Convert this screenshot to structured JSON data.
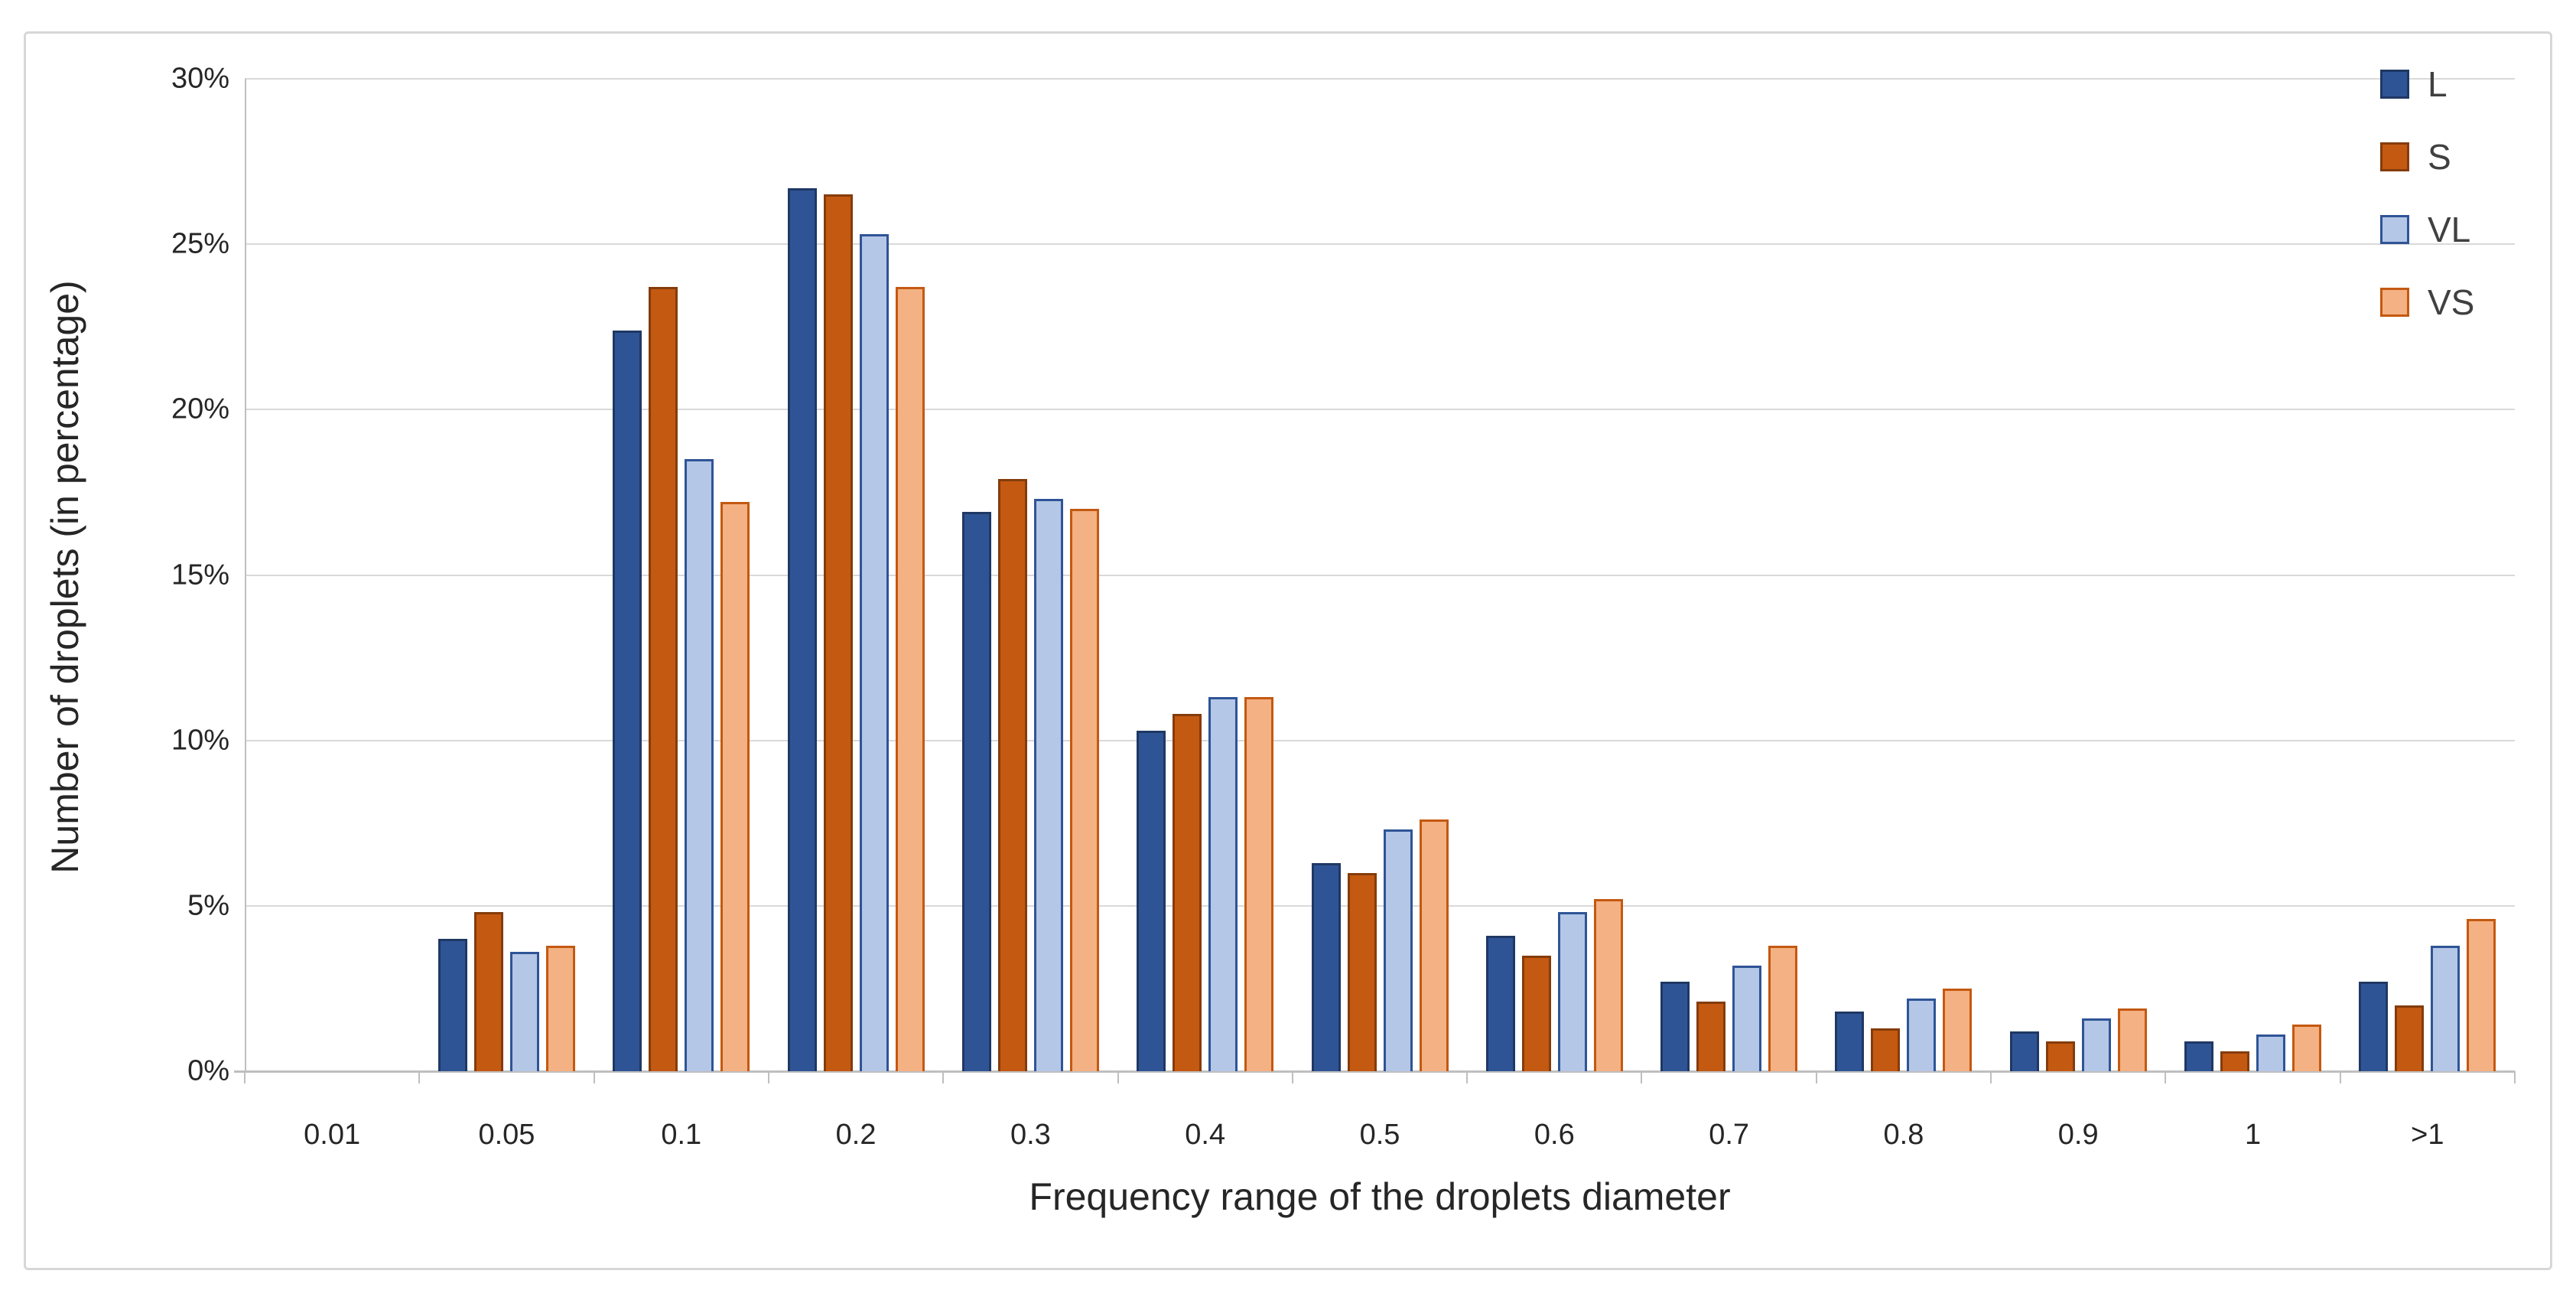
{
  "chart_data": {
    "type": "bar",
    "title": "",
    "xlabel": "Frequency range of the droplets diameter",
    "ylabel": "Number of droplets (in percentage)",
    "categories": [
      "0.01",
      "0.05",
      "0.1",
      "0.2",
      "0.3",
      "0.4",
      "0.5",
      "0.6",
      "0.7",
      "0.8",
      "0.9",
      "1",
      ">1"
    ],
    "series": [
      {
        "name": "L",
        "fill": "#2F5496",
        "stroke": "#1F3864",
        "values": [
          0,
          4.0,
          22.4,
          26.7,
          16.9,
          10.3,
          6.3,
          4.1,
          2.7,
          1.8,
          1.2,
          0.9,
          2.7
        ]
      },
      {
        "name": "S",
        "fill": "#C45911",
        "stroke": "#843C0C",
        "values": [
          0,
          4.8,
          23.7,
          26.5,
          17.9,
          10.8,
          6.0,
          3.5,
          2.1,
          1.3,
          0.9,
          0.6,
          2.0
        ]
      },
      {
        "name": "VL",
        "fill": "#B4C7E7",
        "stroke": "#2F5496",
        "values": [
          0,
          3.6,
          18.5,
          25.3,
          17.3,
          11.3,
          7.3,
          4.8,
          3.2,
          2.2,
          1.6,
          1.1,
          3.8
        ]
      },
      {
        "name": "VS",
        "fill": "#F4B183",
        "stroke": "#C45911",
        "values": [
          0,
          3.8,
          17.2,
          23.7,
          17.0,
          11.3,
          7.6,
          5.2,
          3.8,
          2.5,
          1.9,
          1.4,
          4.6
        ]
      }
    ],
    "ylim": [
      0,
      30
    ],
    "ytick_step": 5,
    "ytick_labels": [
      "0%",
      "5%",
      "10%",
      "15%",
      "20%",
      "25%",
      "30%"
    ],
    "grid": "horizontal-only",
    "gridline_color": "#D9D9D9",
    "axis_color": "#BFBFBF",
    "text_color": "#262626",
    "legend_text_color": "#404040",
    "legend_position": "top-right",
    "legend_entries": [
      "L",
      "S",
      "VL",
      "VS"
    ]
  }
}
